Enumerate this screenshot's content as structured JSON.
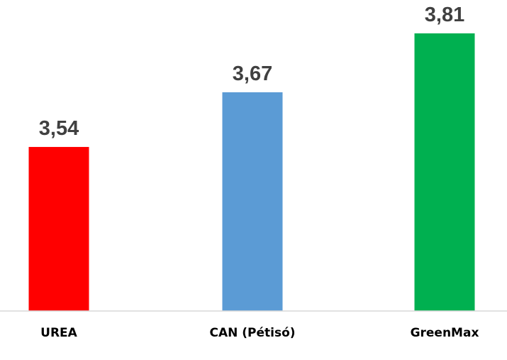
{
  "chart_data": {
    "type": "bar",
    "categories": [
      "UREA",
      "CAN (Pétisó)",
      "GreenMax"
    ],
    "values": [
      3.54,
      3.67,
      3.81
    ],
    "value_labels": [
      "3,54",
      "3,67",
      "3,81"
    ],
    "colors": [
      "#ff0000",
      "#5b9bd5",
      "#00b050"
    ],
    "ylim": [
      3.15,
      3.81
    ],
    "title": "",
    "xlabel": "",
    "ylabel": "",
    "grid": false,
    "legend": "none"
  }
}
